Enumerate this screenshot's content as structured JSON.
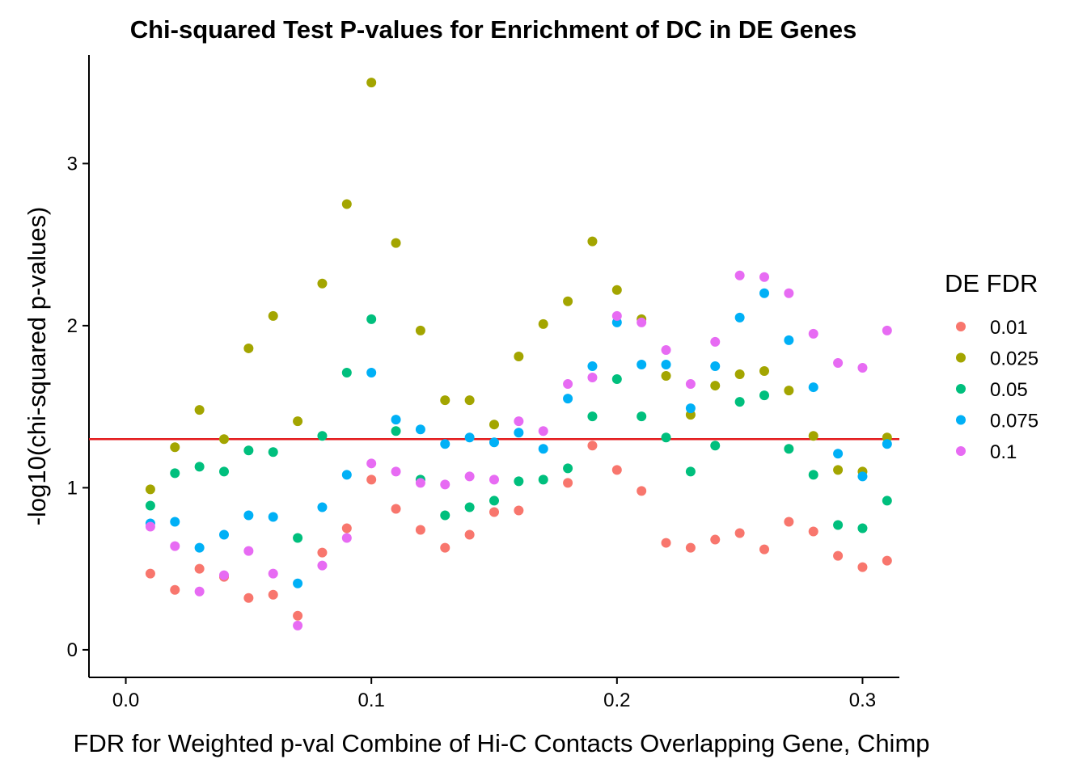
{
  "chart_data": {
    "type": "scatter",
    "title": "Chi-squared Test P-values for Enrichment of DC in DE Genes",
    "xlabel": "FDR for Weighted p-val Combine of Hi-C Contacts Overlapping Gene, Chimp",
    "ylabel": "-log10(chi-squared p-values)",
    "xlim": [
      -0.015,
      0.315
    ],
    "ylim": [
      -0.17,
      3.67
    ],
    "xticks": [
      0.0,
      0.1,
      0.2,
      0.3
    ],
    "xtick_labels": [
      "0.0",
      "0.1",
      "0.2",
      "0.3"
    ],
    "yticks": [
      0,
      1,
      2,
      3
    ],
    "ytick_labels": [
      "0",
      "1",
      "2",
      "3"
    ],
    "hline": {
      "y": 1.3,
      "color": "#e31a1c"
    },
    "grid": false,
    "legend": {
      "title": "DE FDR",
      "position": "right"
    },
    "x": [
      0.01,
      0.02,
      0.03,
      0.04,
      0.05,
      0.06,
      0.07,
      0.08,
      0.09,
      0.1,
      0.11,
      0.12,
      0.13,
      0.14,
      0.15,
      0.16,
      0.17,
      0.18,
      0.19,
      0.2,
      0.21,
      0.22,
      0.23,
      0.24,
      0.25,
      0.26,
      0.27,
      0.28,
      0.29,
      0.3,
      0.31
    ],
    "series": [
      {
        "name": "0.01",
        "color": "#F8766D",
        "values": [
          0.47,
          0.37,
          0.5,
          0.45,
          0.32,
          0.34,
          0.21,
          0.6,
          0.75,
          1.05,
          0.87,
          0.74,
          0.63,
          0.71,
          0.85,
          0.86,
          null,
          1.03,
          1.26,
          1.11,
          0.98,
          0.66,
          0.63,
          0.68,
          0.72,
          0.62,
          0.79,
          0.73,
          0.58,
          0.51,
          0.55
        ]
      },
      {
        "name": "0.025",
        "color": "#A3A500",
        "values": [
          0.99,
          1.25,
          1.48,
          1.3,
          1.86,
          2.06,
          1.41,
          2.26,
          2.75,
          3.5,
          2.51,
          1.97,
          1.54,
          1.54,
          1.39,
          1.81,
          2.01,
          2.15,
          2.52,
          2.22,
          2.04,
          1.69,
          1.45,
          1.63,
          1.7,
          1.72,
          1.6,
          1.32,
          1.11,
          1.1,
          1.31
        ]
      },
      {
        "name": "0.05",
        "color": "#00BF7D",
        "values": [
          0.89,
          1.09,
          1.13,
          1.1,
          1.23,
          1.22,
          0.69,
          1.32,
          1.71,
          2.04,
          1.35,
          1.05,
          0.83,
          0.88,
          0.92,
          1.04,
          1.05,
          1.12,
          1.44,
          1.67,
          1.44,
          1.31,
          1.1,
          1.26,
          1.53,
          1.57,
          1.24,
          1.08,
          0.77,
          0.75,
          0.92
        ]
      },
      {
        "name": "0.075",
        "color": "#00B0F6",
        "values": [
          0.78,
          0.79,
          0.63,
          0.71,
          0.83,
          0.82,
          0.41,
          0.88,
          1.08,
          1.71,
          1.42,
          1.36,
          1.27,
          1.31,
          1.28,
          1.34,
          1.24,
          1.55,
          1.75,
          2.02,
          1.76,
          1.76,
          1.49,
          1.75,
          2.05,
          2.2,
          1.91,
          1.62,
          1.21,
          1.07,
          1.27
        ]
      },
      {
        "name": "0.1",
        "color": "#E76BF3",
        "values": [
          0.76,
          0.64,
          0.36,
          0.46,
          0.61,
          0.47,
          0.15,
          0.52,
          0.69,
          1.15,
          1.1,
          1.03,
          1.02,
          1.07,
          1.05,
          1.41,
          1.35,
          1.64,
          1.68,
          2.06,
          2.02,
          1.85,
          1.64,
          1.9,
          2.31,
          2.3,
          2.2,
          1.95,
          1.77,
          1.74,
          1.97
        ]
      }
    ]
  }
}
